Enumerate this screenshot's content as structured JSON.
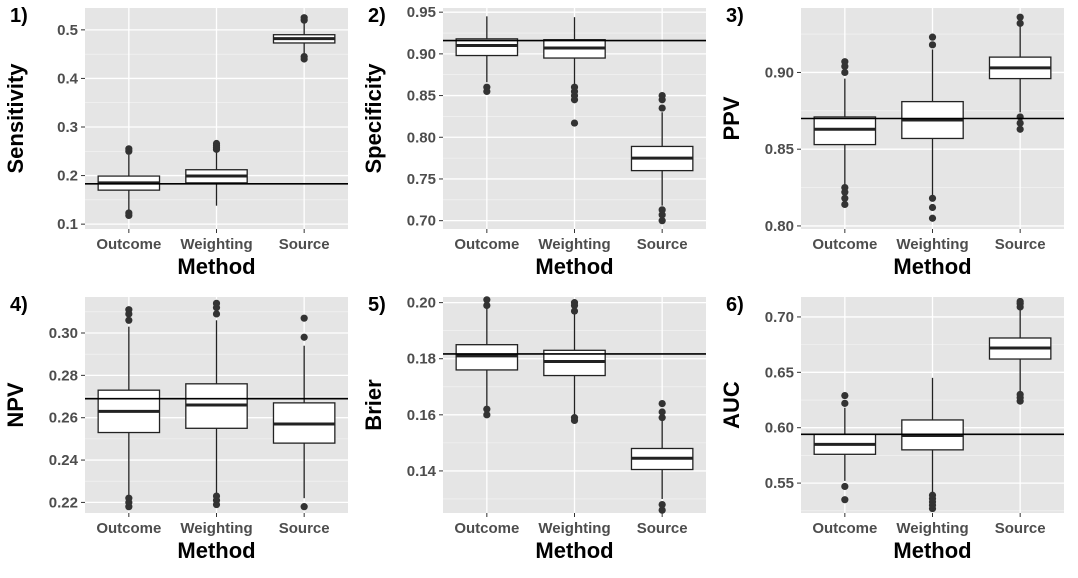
{
  "figure": {
    "x_axis_title": "Method",
    "categories": [
      "Outcome",
      "Weighting",
      "Source"
    ],
    "colors": {
      "panel_background": "#e5e5e5",
      "grid_major": "#ffffff",
      "box_fill": "#ffffff",
      "box_stroke": "#222222",
      "reference_line": "#000000",
      "tick_text": "#4d4d4d"
    }
  },
  "chart_data": [
    {
      "type": "boxplot",
      "panel_label": "1)",
      "ylabel": "Sensitivity",
      "xlabel": "Method",
      "categories": [
        "Outcome",
        "Weighting",
        "Source"
      ],
      "ylim": [
        0.09,
        0.545
      ],
      "yticks": [
        0.1,
        0.2,
        0.3,
        0.4,
        0.5
      ],
      "ytick_labels": [
        "0.1",
        "0.2",
        "0.3",
        "0.4",
        "0.5"
      ],
      "reference_line": 0.183,
      "boxes": [
        {
          "q1": 0.17,
          "median": 0.185,
          "q3": 0.199,
          "whisker_low": 0.127,
          "whisker_high": 0.243,
          "outliers": [
            0.118,
            0.123,
            0.25,
            0.255
          ]
        },
        {
          "q1": 0.185,
          "median": 0.199,
          "q3": 0.212,
          "whisker_low": 0.138,
          "whisker_high": 0.25,
          "outliers": [
            0.254,
            0.258,
            0.262,
            0.266
          ]
        },
        {
          "q1": 0.473,
          "median": 0.482,
          "q3": 0.49,
          "whisker_low": 0.448,
          "whisker_high": 0.515,
          "outliers": [
            0.44,
            0.445,
            0.52,
            0.525
          ]
        }
      ]
    },
    {
      "type": "boxplot",
      "panel_label": "2)",
      "ylabel": "Specificity",
      "xlabel": "Method",
      "categories": [
        "Outcome",
        "Weighting",
        "Source"
      ],
      "ylim": [
        0.69,
        0.955
      ],
      "yticks": [
        0.7,
        0.75,
        0.8,
        0.85,
        0.9,
        0.95
      ],
      "ytick_labels": [
        "0.70",
        "0.75",
        "0.80",
        "0.85",
        "0.90",
        "0.95"
      ],
      "reference_line": 0.916,
      "boxes": [
        {
          "q1": 0.898,
          "median": 0.91,
          "q3": 0.918,
          "whisker_low": 0.866,
          "whisker_high": 0.945,
          "outliers": [
            0.855,
            0.86
          ]
        },
        {
          "q1": 0.895,
          "median": 0.907,
          "q3": 0.917,
          "whisker_low": 0.863,
          "whisker_high": 0.944,
          "outliers": [
            0.817,
            0.845,
            0.85,
            0.855,
            0.86
          ]
        },
        {
          "q1": 0.76,
          "median": 0.775,
          "q3": 0.789,
          "whisker_low": 0.718,
          "whisker_high": 0.83,
          "outliers": [
            0.7,
            0.707,
            0.713,
            0.835,
            0.845,
            0.85
          ]
        }
      ]
    },
    {
      "type": "boxplot",
      "panel_label": "3)",
      "ylabel": "PPV",
      "xlabel": "Method",
      "categories": [
        "Outcome",
        "Weighting",
        "Source"
      ],
      "ylim": [
        0.798,
        0.942
      ],
      "yticks": [
        0.8,
        0.85,
        0.9
      ],
      "ytick_labels": [
        "0.80",
        "0.85",
        "0.90"
      ],
      "reference_line": 0.87,
      "boxes": [
        {
          "q1": 0.853,
          "median": 0.863,
          "q3": 0.871,
          "whisker_low": 0.826,
          "whisker_high": 0.896,
          "outliers": [
            0.814,
            0.818,
            0.822,
            0.825,
            0.9,
            0.904,
            0.907
          ]
        },
        {
          "q1": 0.857,
          "median": 0.869,
          "q3": 0.881,
          "whisker_low": 0.82,
          "whisker_high": 0.915,
          "outliers": [
            0.805,
            0.812,
            0.818,
            0.918,
            0.923
          ]
        },
        {
          "q1": 0.896,
          "median": 0.903,
          "q3": 0.91,
          "whisker_low": 0.874,
          "whisker_high": 0.93,
          "outliers": [
            0.863,
            0.867,
            0.871,
            0.932,
            0.936
          ]
        }
      ]
    },
    {
      "type": "boxplot",
      "panel_label": "4)",
      "ylabel": "NPV",
      "xlabel": "Method",
      "categories": [
        "Outcome",
        "Weighting",
        "Source"
      ],
      "ylim": [
        0.215,
        0.317
      ],
      "yticks": [
        0.22,
        0.24,
        0.26,
        0.28,
        0.3
      ],
      "ytick_labels": [
        "0.22",
        "0.24",
        "0.26",
        "0.28",
        "0.30"
      ],
      "reference_line": 0.269,
      "boxes": [
        {
          "q1": 0.253,
          "median": 0.263,
          "q3": 0.273,
          "whisker_low": 0.223,
          "whisker_high": 0.303,
          "outliers": [
            0.218,
            0.22,
            0.222,
            0.306,
            0.309,
            0.311
          ]
        },
        {
          "q1": 0.255,
          "median": 0.266,
          "q3": 0.276,
          "whisker_low": 0.223,
          "whisker_high": 0.306,
          "outliers": [
            0.219,
            0.221,
            0.223,
            0.309,
            0.312,
            0.314
          ]
        },
        {
          "q1": 0.248,
          "median": 0.257,
          "q3": 0.267,
          "whisker_low": 0.222,
          "whisker_high": 0.294,
          "outliers": [
            0.218,
            0.298,
            0.307
          ]
        }
      ]
    },
    {
      "type": "boxplot",
      "panel_label": "5)",
      "ylabel": "Brier",
      "xlabel": "Method",
      "categories": [
        "Outcome",
        "Weighting",
        "Source"
      ],
      "ylim": [
        0.125,
        0.202
      ],
      "yticks": [
        0.14,
        0.16,
        0.18,
        0.2
      ],
      "ytick_labels": [
        "0.14",
        "0.16",
        "0.18",
        "0.20"
      ],
      "reference_line": 0.1817,
      "boxes": [
        {
          "q1": 0.176,
          "median": 0.181,
          "q3": 0.185,
          "whisker_low": 0.163,
          "whisker_high": 0.198,
          "outliers": [
            0.16,
            0.162,
            0.199,
            0.201
          ]
        },
        {
          "q1": 0.174,
          "median": 0.179,
          "q3": 0.183,
          "whisker_low": 0.16,
          "whisker_high": 0.196,
          "outliers": [
            0.158,
            0.159,
            0.197,
            0.199,
            0.2
          ]
        },
        {
          "q1": 0.1405,
          "median": 0.1445,
          "q3": 0.148,
          "whisker_low": 0.13,
          "whisker_high": 0.158,
          "outliers": [
            0.126,
            0.128,
            0.159,
            0.161,
            0.164
          ]
        }
      ]
    },
    {
      "type": "boxplot",
      "panel_label": "6)",
      "ylabel": "AUC",
      "xlabel": "Method",
      "categories": [
        "Outcome",
        "Weighting",
        "Source"
      ],
      "ylim": [
        0.523,
        0.718
      ],
      "yticks": [
        0.55,
        0.6,
        0.65,
        0.7
      ],
      "ytick_labels": [
        "0.55",
        "0.60",
        "0.65",
        "0.70"
      ],
      "reference_line": 0.594,
      "boxes": [
        {
          "q1": 0.576,
          "median": 0.585,
          "q3": 0.594,
          "whisker_low": 0.552,
          "whisker_high": 0.618,
          "outliers": [
            0.535,
            0.547,
            0.622,
            0.629
          ]
        },
        {
          "q1": 0.58,
          "median": 0.593,
          "q3": 0.607,
          "whisker_low": 0.541,
          "whisker_high": 0.645,
          "outliers": [
            0.527,
            0.53,
            0.533,
            0.536,
            0.539
          ]
        },
        {
          "q1": 0.662,
          "median": 0.672,
          "q3": 0.681,
          "whisker_low": 0.633,
          "whisker_high": 0.707,
          "outliers": [
            0.624,
            0.627,
            0.63,
            0.709,
            0.712,
            0.714
          ]
        }
      ]
    }
  ]
}
